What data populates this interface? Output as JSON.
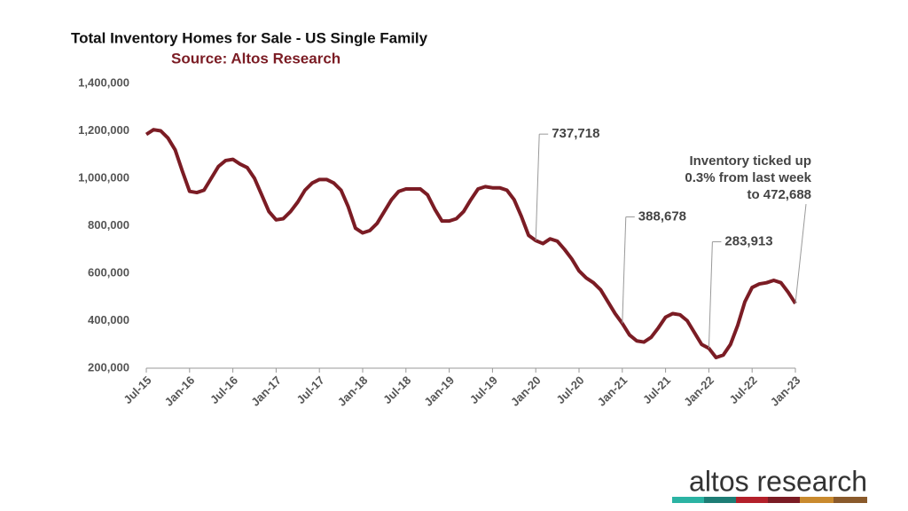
{
  "chart_data": {
    "type": "line",
    "title": "Total Inventory Homes for Sale - US Single Family",
    "subtitle": "Source: Altos Research",
    "categories": [
      "Jul-15",
      null,
      null,
      null,
      null,
      null,
      "Jan-16",
      null,
      null,
      null,
      null,
      null,
      "Jul-16",
      null,
      null,
      null,
      null,
      null,
      "Jan-17",
      null,
      null,
      null,
      null,
      null,
      "Jul-17",
      null,
      null,
      null,
      null,
      null,
      "Jan-18",
      null,
      null,
      null,
      null,
      null,
      "Jul-18",
      null,
      null,
      null,
      null,
      null,
      "Jan-19",
      null,
      null,
      null,
      null,
      null,
      "Jul-19",
      null,
      null,
      null,
      null,
      null,
      "Jan-20",
      null,
      null,
      null,
      null,
      null,
      "Jul-20",
      null,
      null,
      null,
      null,
      null,
      "Jan-21",
      null,
      null,
      null,
      null,
      null,
      "Jul-21",
      null,
      null,
      null,
      null,
      null,
      "Jan-22",
      null,
      null,
      null,
      null,
      null,
      "Jul-22",
      null,
      null,
      null,
      null,
      null,
      "Jan-23"
    ],
    "series": [
      {
        "color": "#7b1c24",
        "values": [
          1185000,
          1205000,
          1200000,
          1170000,
          1120000,
          1030000,
          945000,
          940000,
          950000,
          1000000,
          1050000,
          1075000,
          1080000,
          1060000,
          1045000,
          1000000,
          930000,
          860000,
          825000,
          830000,
          860000,
          900000,
          950000,
          980000,
          995000,
          995000,
          980000,
          950000,
          880000,
          790000,
          770000,
          780000,
          810000,
          860000,
          910000,
          945000,
          955000,
          955000,
          955000,
          930000,
          870000,
          820000,
          820000,
          830000,
          860000,
          910000,
          955000,
          965000,
          960000,
          960000,
          950000,
          910000,
          840000,
          760000,
          737718,
          725000,
          745000,
          735000,
          700000,
          660000,
          610000,
          580000,
          560000,
          530000,
          480000,
          430000,
          388678,
          340000,
          315000,
          310000,
          330000,
          370000,
          415000,
          430000,
          425000,
          400000,
          350000,
          300000,
          283913,
          245000,
          255000,
          300000,
          380000,
          480000,
          540000,
          555000,
          560000,
          570000,
          560000,
          520000,
          472688
        ]
      }
    ],
    "ylim": [
      200000,
      1400000
    ],
    "yticks": [
      {
        "value": 200000,
        "label": "200,000"
      },
      {
        "value": 400000,
        "label": "400,000"
      },
      {
        "value": 600000,
        "label": "600,000"
      },
      {
        "value": 800000,
        "label": "800,000"
      },
      {
        "value": 1000000,
        "label": "1,000,000"
      },
      {
        "value": 1200000,
        "label": "1,200,000"
      },
      {
        "value": 1400000,
        "label": "1,400,000"
      }
    ],
    "annotations": [
      {
        "lines": [
          "737,718"
        ],
        "value": 737718
      },
      {
        "lines": [
          "388,678"
        ],
        "value": 388678
      },
      {
        "lines": [
          "283,913"
        ],
        "value": 283913
      },
      {
        "lines": [
          "Inventory ticked up",
          "0.3% from last week",
          "to 472,688"
        ],
        "value": 472688
      }
    ]
  },
  "logo": {
    "text": "altos research"
  }
}
